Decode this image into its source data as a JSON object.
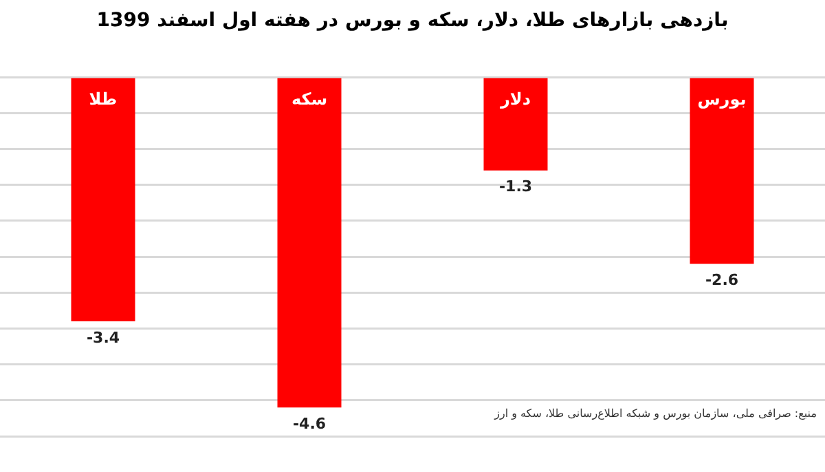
{
  "chart_data": {
    "type": "bar",
    "title": "بازدهی بازارهای طلا، دلار، سکه و بورس در هفته اول اسفند 1399",
    "categories": [
      "طلا",
      "سکه",
      "دلار",
      "بورس"
    ],
    "values": [
      -3.4,
      -4.6,
      -1.3,
      -2.6
    ],
    "color": "#ff0000",
    "ylim": [
      -5,
      0
    ],
    "yticks": [
      {
        "value": 0,
        "label": null
      },
      {
        "value": -0.5,
        "label": null
      },
      {
        "value": -1,
        "label": null
      },
      {
        "value": -1.5,
        "label": null
      },
      {
        "value": -2,
        "label": null
      },
      {
        "value": -2.5,
        "label": null
      },
      {
        "value": -3,
        "label": null
      },
      {
        "value": -3.5,
        "label": null
      },
      {
        "value": -4,
        "label": null
      },
      {
        "value": -4.5,
        "label": null
      },
      {
        "value": -5,
        "label": null
      }
    ],
    "grid": "y",
    "tick_labels": false,
    "data_labels": true,
    "annotations": [
      "منبع: صرافی ملی، سازمان بورس و شبکه اطلاع‌رسانی طلا، سکه و ارز"
    ]
  }
}
